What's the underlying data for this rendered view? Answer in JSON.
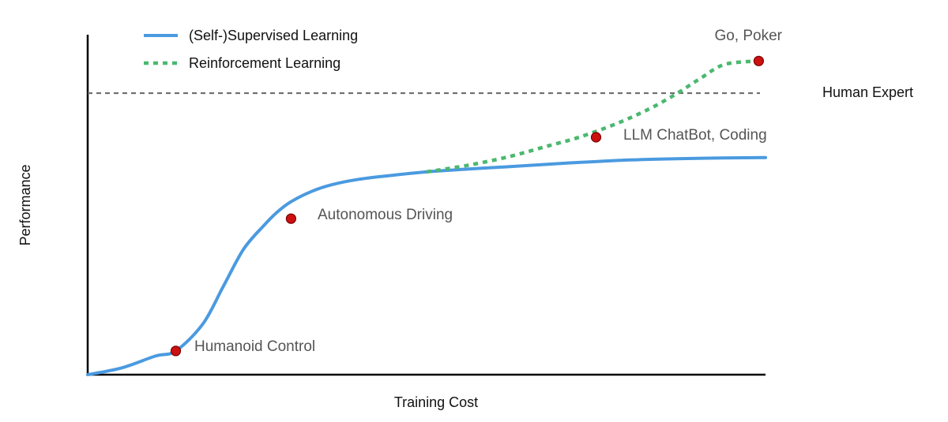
{
  "chart_data": {
    "type": "line",
    "xlabel": "Training Cost",
    "ylabel": "Performance",
    "xlim": [
      0,
      100
    ],
    "ylim": [
      0,
      100
    ],
    "grid": false,
    "legend_position": "top-left",
    "colors": {
      "supervised": "#4a9ae0",
      "reinforcement": "#4bb86f",
      "reference": "#666666",
      "points": "#cc1111",
      "point_edge": "#7a0000"
    },
    "series": [
      {
        "name": "(Self-)Supervised Learning",
        "style": "solid",
        "x": [
          0,
          5,
          10,
          13,
          17,
          20,
          23,
          26,
          28,
          30,
          33,
          36,
          40,
          45,
          50,
          56,
          62,
          70,
          80,
          90,
          100
        ],
        "y": [
          0,
          2,
          5.5,
          7,
          15,
          26,
          37,
          44,
          48,
          51,
          54,
          56,
          57.6,
          58.8,
          59.8,
          60.6,
          61.3,
          62.3,
          63.3,
          63.8,
          64
        ]
      },
      {
        "name": "Reinforcement Learning",
        "style": "dotted",
        "x": [
          50,
          56,
          62,
          68,
          72.5,
          78,
          83,
          87,
          90.5,
          94,
          99
        ],
        "y": [
          59.8,
          61.7,
          64.2,
          67.5,
          70,
          74,
          78.5,
          83,
          87.5,
          91.5,
          92.5
        ]
      }
    ],
    "reference_line": {
      "label": "Human Expert",
      "y": 83
    },
    "annotations": [
      {
        "label": "Humanoid Control",
        "x": 13,
        "y": 7
      },
      {
        "label": "Autonomous Driving",
        "x": 30,
        "y": 46
      },
      {
        "label": "LLM ChatBot, Coding",
        "x": 75,
        "y": 70
      },
      {
        "label": "Go, Poker",
        "x": 99,
        "y": 92.5
      }
    ]
  }
}
